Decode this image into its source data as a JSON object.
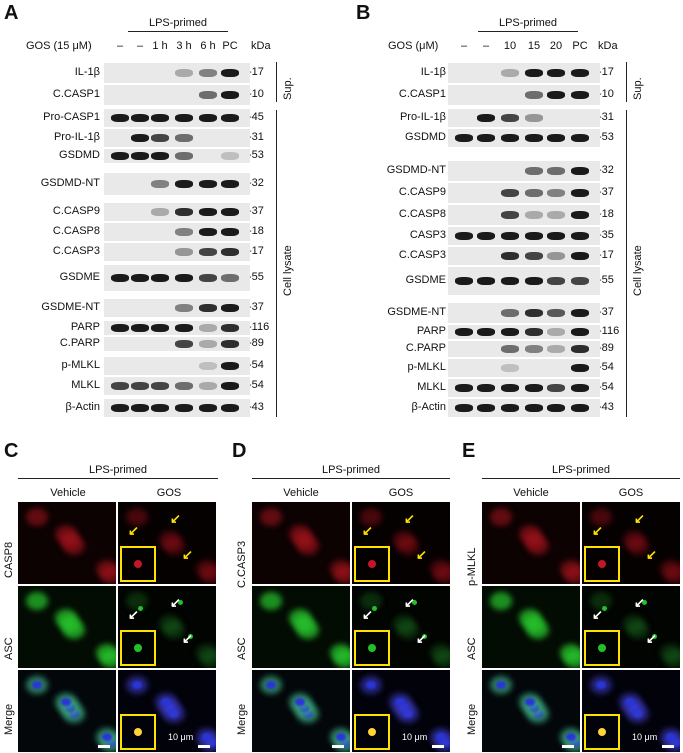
{
  "panel_letters": {
    "a": "A",
    "b": "B",
    "c": "C",
    "d": "D",
    "e": "E"
  },
  "panelA": {
    "lps_label": "LPS-primed",
    "gos_label": "GOS (15 μM)",
    "lanes": [
      "–",
      "–",
      "1 h",
      "3 h",
      "6 h",
      "PC"
    ],
    "kda_label": "kDa",
    "rows": [
      {
        "label": "IL-1β",
        "kda": "-17"
      },
      {
        "label": "C.CASP1",
        "kda": "-10"
      },
      {
        "label": "Pro-CASP1",
        "kda": "-45"
      },
      {
        "label": "Pro-IL-1β",
        "kda": "-31"
      },
      {
        "label": "GSDMD",
        "kda": "-53"
      },
      {
        "label": "GSDMD-NT",
        "kda": "-32"
      },
      {
        "label": "C.CASP9",
        "kda": "-37"
      },
      {
        "label": "C.CASP8",
        "kda": "-18"
      },
      {
        "label": "C.CASP3",
        "kda": "-17"
      },
      {
        "label": "GSDME",
        "kda": "-55"
      },
      {
        "label": "GSDME-NT",
        "kda": "-37"
      },
      {
        "label": "PARP",
        "kda": "-116"
      },
      {
        "label": "C.PARP",
        "kda": "-89"
      },
      {
        "label": "p-MLKL",
        "kda": "-54"
      },
      {
        "label": "MLKL",
        "kda": "-54"
      },
      {
        "label": "β-Actin",
        "kda": "-43"
      }
    ],
    "sup_label": "Sup.",
    "lysate_label": "Cell lysate"
  },
  "panelB": {
    "lps_label": "LPS-primed",
    "gos_label": "GOS (μM)",
    "lanes": [
      "–",
      "–",
      "10",
      "15",
      "20",
      "PC"
    ],
    "kda_label": "kDa",
    "rows": [
      {
        "label": "IL-1β",
        "kda": "-17"
      },
      {
        "label": "C.CASP1",
        "kda": "-10"
      },
      {
        "label": "Pro-IL-1β",
        "kda": "-31"
      },
      {
        "label": "GSDMD",
        "kda": "-53"
      },
      {
        "label": "GSDMD-NT",
        "kda": "-32"
      },
      {
        "label": "C.CASP9",
        "kda": "-37"
      },
      {
        "label": "C.CASP8",
        "kda": "-18"
      },
      {
        "label": "CASP3",
        "kda": "-35"
      },
      {
        "label": "C.CASP3",
        "kda": "-17"
      },
      {
        "label": "GSDME",
        "kda": "-55"
      },
      {
        "label": "GSDME-NT",
        "kda": "-37"
      },
      {
        "label": "PARP",
        "kda": "-116"
      },
      {
        "label": "C.PARP",
        "kda": "-89"
      },
      {
        "label": "p-MLKL",
        "kda": "-54"
      },
      {
        "label": "MLKL",
        "kda": "-54"
      },
      {
        "label": "β-Actin",
        "kda": "-43"
      }
    ],
    "sup_label": "Sup.",
    "lysate_label": "Cell lysate"
  },
  "panelC": {
    "lps_label": "LPS-primed",
    "col1": "Vehicle",
    "col2": "GOS",
    "row1": "CASP8",
    "row2": "ASC",
    "row3": "Merge",
    "scale": "10 μm"
  },
  "panelD": {
    "lps_label": "LPS-primed",
    "col1": "Vehicle",
    "col2": "GOS",
    "row1": "C.CASP3",
    "row2": "ASC",
    "row3": "Merge",
    "scale": "10 μm"
  },
  "panelE": {
    "lps_label": "LPS-primed",
    "col1": "Vehicle",
    "col2": "GOS",
    "row1": "p-MLKL",
    "row2": "ASC",
    "row3": "Merge",
    "scale": "10 μm"
  },
  "colors": {
    "red_channel": "#c0182a",
    "green_channel": "#22c02a",
    "blue_channel": "#2a35d8",
    "inset": "#ffe100",
    "arrow_yellow": "#ffe100",
    "arrow_white": "#ffffff"
  }
}
